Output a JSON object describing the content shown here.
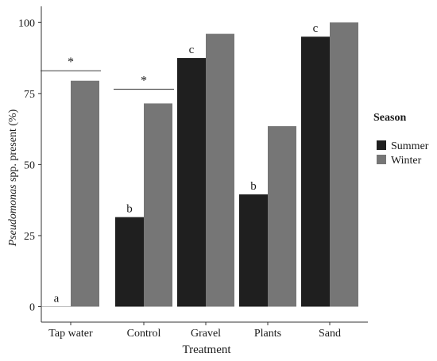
{
  "chart_data": {
    "type": "bar",
    "title": "",
    "xlabel": "Treatment",
    "ylabel_italic": "Pseudomonas",
    "ylabel_rest": " spp. present (%)",
    "categories": [
      "Tap water",
      "Control",
      "Gravel",
      "Plants",
      "Sand"
    ],
    "yticks": [
      "0",
      "25",
      "50",
      "75",
      "100"
    ],
    "ylim": [
      0,
      107
    ],
    "grid": false,
    "legend_position": "right",
    "legend_title": "Season",
    "series": [
      {
        "name": "Summer",
        "color": "#1f1f1f",
        "values": [
          0,
          31.5,
          87.5,
          39.5,
          95
        ]
      },
      {
        "name": "Winter",
        "color": "#767676",
        "values": [
          79.5,
          71.5,
          96,
          63.5,
          100
        ]
      }
    ],
    "letters": [
      {
        "category": 0,
        "text": "a"
      },
      {
        "category": 1,
        "text": "b"
      },
      {
        "category": 2,
        "text": "c"
      },
      {
        "category": 3,
        "text": "b"
      },
      {
        "category": 4,
        "text": "c"
      }
    ],
    "significance": [
      {
        "category": 0,
        "text": "*",
        "y": 83
      },
      {
        "category": 1,
        "text": "*",
        "y": 76.5
      }
    ]
  }
}
